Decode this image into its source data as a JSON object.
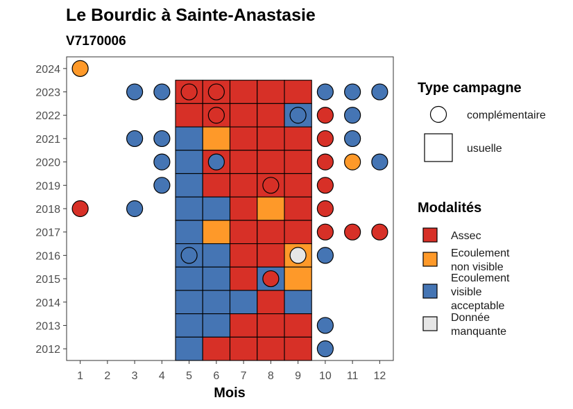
{
  "chart_data": {
    "type": "heatmap",
    "title": "Le Bourdic à Sainte-Anastasie",
    "subtitle": "V7170006",
    "xlabel": "Mois",
    "ylabel": "",
    "x_ticks": [
      "1",
      "2",
      "3",
      "4",
      "5",
      "6",
      "7",
      "8",
      "9",
      "10",
      "11",
      "12"
    ],
    "y_ticks": [
      "2012",
      "2013",
      "2014",
      "2015",
      "2016",
      "2017",
      "2018",
      "2019",
      "2020",
      "2021",
      "2022",
      "2023",
      "2024"
    ],
    "xlim": [
      0.5,
      12.5
    ],
    "ylim": [
      2011.5,
      2024.5
    ],
    "legend_campagne": {
      "title": "Type campagne",
      "items": [
        {
          "key": "complementaire",
          "label": "complémentaire",
          "shape": "circle"
        },
        {
          "key": "usuelle",
          "label": "usuelle",
          "shape": "square"
        }
      ]
    },
    "legend_modalites": {
      "title": "Modalités",
      "items": [
        {
          "key": "assec",
          "label_lines": [
            "Assec"
          ],
          "color": "#d73027"
        },
        {
          "key": "nonvisible",
          "label_lines": [
            "Ecoulement",
            "non visible"
          ],
          "color": "#fe9929"
        },
        {
          "key": "visible",
          "label_lines": [
            "Ecoulement",
            "visible",
            "acceptable"
          ],
          "color": "#4575b4"
        },
        {
          "key": "manquante",
          "label_lines": [
            "Donnée",
            "manquante"
          ],
          "color": "#e6e6e6"
        }
      ]
    },
    "usuelle": [
      {
        "year": 2023,
        "months": [
          "assec",
          "assec",
          "assec",
          "assec",
          "assec"
        ]
      },
      {
        "year": 2022,
        "months": [
          "assec",
          "assec",
          "assec",
          "assec",
          "visible"
        ]
      },
      {
        "year": 2021,
        "months": [
          "visible",
          "nonvisible",
          "assec",
          "assec",
          "assec"
        ]
      },
      {
        "year": 2020,
        "months": [
          "visible",
          "assec",
          "assec",
          "assec",
          "assec"
        ]
      },
      {
        "year": 2019,
        "months": [
          "visible",
          "assec",
          "assec",
          "assec",
          "assec"
        ]
      },
      {
        "year": 2018,
        "months": [
          "visible",
          "visible",
          "assec",
          "nonvisible",
          "assec"
        ]
      },
      {
        "year": 2017,
        "months": [
          "visible",
          "nonvisible",
          "assec",
          "assec",
          "assec"
        ]
      },
      {
        "year": 2016,
        "months": [
          "visible",
          "visible",
          "assec",
          "assec",
          "nonvisible"
        ]
      },
      {
        "year": 2015,
        "months": [
          "visible",
          "visible",
          "assec",
          "visible",
          "nonvisible"
        ]
      },
      {
        "year": 2014,
        "months": [
          "visible",
          "visible",
          "visible",
          "assec",
          "visible"
        ]
      },
      {
        "year": 2013,
        "months": [
          "visible",
          "visible",
          "assec",
          "assec",
          "assec"
        ]
      },
      {
        "year": 2012,
        "months": [
          "visible",
          "assec",
          "assec",
          "assec",
          "assec"
        ]
      }
    ],
    "usuelle_first_month": 5,
    "complementaire": [
      {
        "year": 2024,
        "month": 1,
        "mod": "nonvisible"
      },
      {
        "year": 2023,
        "month": 3,
        "mod": "visible"
      },
      {
        "year": 2023,
        "month": 4,
        "mod": "visible"
      },
      {
        "year": 2023,
        "month": 5,
        "mod": "assec"
      },
      {
        "year": 2023,
        "month": 6,
        "mod": "assec"
      },
      {
        "year": 2023,
        "month": 10,
        "mod": "visible"
      },
      {
        "year": 2023,
        "month": 11,
        "mod": "visible"
      },
      {
        "year": 2023,
        "month": 12,
        "mod": "visible"
      },
      {
        "year": 2022,
        "month": 6,
        "mod": "assec"
      },
      {
        "year": 2022,
        "month": 9,
        "mod": "visible"
      },
      {
        "year": 2022,
        "month": 10,
        "mod": "assec"
      },
      {
        "year": 2022,
        "month": 11,
        "mod": "visible"
      },
      {
        "year": 2021,
        "month": 3,
        "mod": "visible"
      },
      {
        "year": 2021,
        "month": 4,
        "mod": "visible"
      },
      {
        "year": 2021,
        "month": 10,
        "mod": "assec"
      },
      {
        "year": 2021,
        "month": 11,
        "mod": "visible"
      },
      {
        "year": 2020,
        "month": 4,
        "mod": "visible"
      },
      {
        "year": 2020,
        "month": 6,
        "mod": "visible"
      },
      {
        "year": 2020,
        "month": 10,
        "mod": "assec"
      },
      {
        "year": 2020,
        "month": 11,
        "mod": "nonvisible"
      },
      {
        "year": 2020,
        "month": 12,
        "mod": "visible"
      },
      {
        "year": 2019,
        "month": 4,
        "mod": "visible"
      },
      {
        "year": 2019,
        "month": 8,
        "mod": "assec"
      },
      {
        "year": 2019,
        "month": 10,
        "mod": "assec"
      },
      {
        "year": 2018,
        "month": 1,
        "mod": "assec"
      },
      {
        "year": 2018,
        "month": 3,
        "mod": "visible"
      },
      {
        "year": 2018,
        "month": 10,
        "mod": "assec"
      },
      {
        "year": 2017,
        "month": 10,
        "mod": "assec"
      },
      {
        "year": 2017,
        "month": 11,
        "mod": "assec"
      },
      {
        "year": 2017,
        "month": 12,
        "mod": "assec"
      },
      {
        "year": 2016,
        "month": 5,
        "mod": "visible"
      },
      {
        "year": 2016,
        "month": 9,
        "mod": "manquante"
      },
      {
        "year": 2016,
        "month": 10,
        "mod": "visible"
      },
      {
        "year": 2015,
        "month": 8,
        "mod": "assec"
      },
      {
        "year": 2013,
        "month": 10,
        "mod": "visible"
      },
      {
        "year": 2012,
        "month": 10,
        "mod": "visible"
      }
    ]
  }
}
